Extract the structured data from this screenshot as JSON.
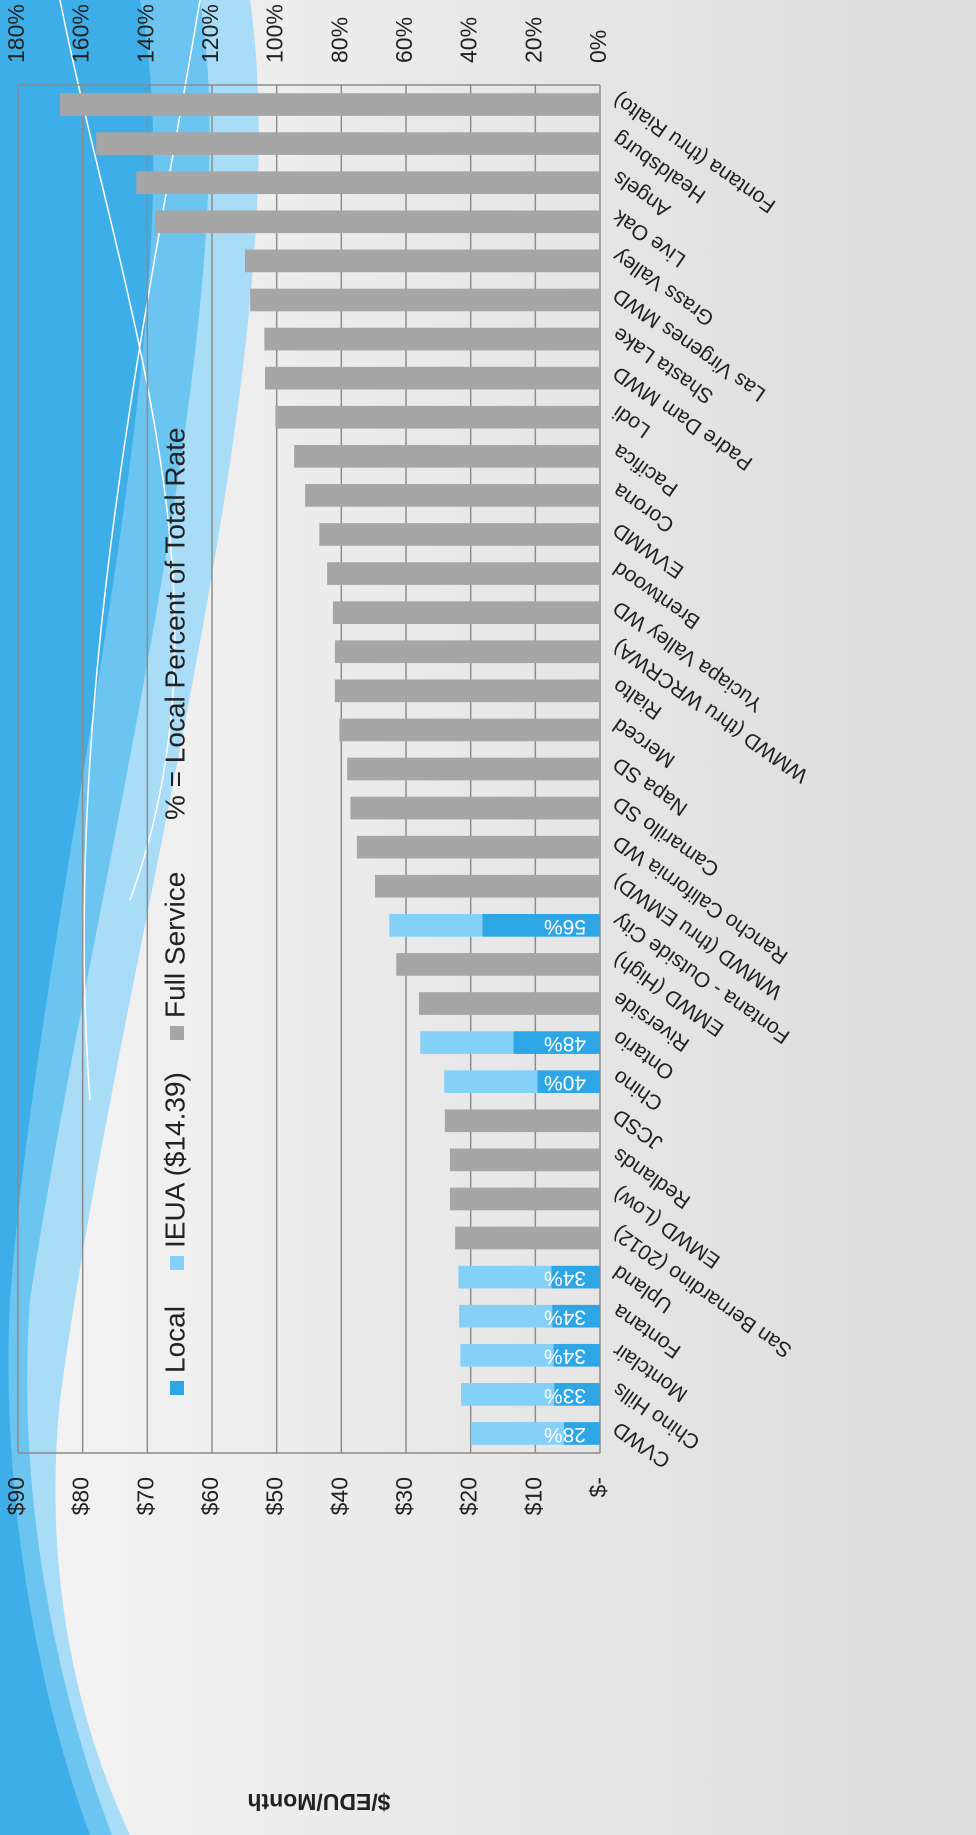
{
  "chart_data": {
    "type": "stacked_bar",
    "y_axis_label": "$/EDU/Month",
    "annotation": "% = Local Percent of Total Rate",
    "categories": [
      "CVWD",
      "Chino Hills",
      "Montclair",
      "Fontana",
      "Upland",
      "San Bernardino (2012)",
      "EMWD (Low)",
      "Redlands",
      "JCSD",
      "Chino",
      "Ontario",
      "Riverside",
      "EMWD (High)",
      "Fontana - Outside City",
      "WMWD (thru EMWD)",
      "Rancho California WD",
      "Camarillo SD",
      "Napa SD",
      "Merced",
      "Rialto",
      "WMWD (thru WRCRWA)",
      "Yuciapa Valley WD",
      "Brentwood",
      "EVWMD",
      "Corona",
      "Pacifica",
      "Lodi",
      "Padre Dam MWD",
      "Shasta Lake",
      "Las Virgenes MWD",
      "Grass Valley",
      "Live Oak",
      "Angels",
      "Healdsburg",
      "Fontana (thru Rialto)"
    ],
    "series": [
      {
        "name": "Local",
        "color": "#2ea6e6",
        "values": [
          5.6,
          7.1,
          7.2,
          7.4,
          7.5,
          null,
          null,
          null,
          null,
          9.7,
          13.4,
          null,
          null,
          18.2,
          null,
          null,
          null,
          null,
          null,
          null,
          null,
          null,
          null,
          null,
          null,
          null,
          null,
          null,
          null,
          null,
          null,
          null,
          null,
          null,
          null
        ]
      },
      {
        "name": "IEUA ($14.39)",
        "color": "#84d0f7",
        "values": [
          14.39,
          14.39,
          14.39,
          14.39,
          14.39,
          null,
          null,
          null,
          null,
          14.39,
          14.39,
          null,
          null,
          14.39,
          null,
          null,
          null,
          null,
          null,
          null,
          null,
          null,
          null,
          null,
          null,
          null,
          null,
          null,
          null,
          null,
          null,
          null,
          null,
          null,
          null
        ]
      },
      {
        "name": "Full Service",
        "color": "#a6a6a6",
        "values": [
          null,
          null,
          null,
          null,
          null,
          22.4,
          23.2,
          23.2,
          24.0,
          null,
          null,
          28.0,
          31.5,
          null,
          34.8,
          37.6,
          38.6,
          39.1,
          40.3,
          41.0,
          41.0,
          41.3,
          42.2,
          43.4,
          45.6,
          47.3,
          50.2,
          51.8,
          51.9,
          54.1,
          54.9,
          68.8,
          71.7,
          77.9,
          83.5
        ]
      }
    ],
    "local_percent_labels": [
      "28%",
      "33%",
      "34%",
      "34%",
      "34%",
      null,
      null,
      null,
      null,
      "40%",
      "48%",
      null,
      null,
      "56%",
      null,
      null,
      null,
      null,
      null,
      null,
      null,
      null,
      null,
      null,
      null,
      null,
      null,
      null,
      null,
      null,
      null,
      null,
      null,
      null,
      null
    ],
    "ylim": [
      0,
      90
    ],
    "yticks": [
      {
        "value": 0,
        "label": "$-"
      },
      {
        "value": 10,
        "label": "$10"
      },
      {
        "value": 20,
        "label": "$20"
      },
      {
        "value": 30,
        "label": "$30"
      },
      {
        "value": 40,
        "label": "$40"
      },
      {
        "value": 50,
        "label": "$50"
      },
      {
        "value": 60,
        "label": "$60"
      },
      {
        "value": 70,
        "label": "$70"
      },
      {
        "value": 80,
        "label": "$80"
      },
      {
        "value": 90,
        "label": "$90"
      }
    ],
    "y2lim": [
      0,
      180
    ],
    "y2ticks": [
      {
        "value": 0,
        "label": "0%"
      },
      {
        "value": 20,
        "label": "20%"
      },
      {
        "value": 40,
        "label": "40%"
      },
      {
        "value": 60,
        "label": "60%"
      },
      {
        "value": 80,
        "label": "80%"
      },
      {
        "value": 100,
        "label": "100%"
      },
      {
        "value": 120,
        "label": "120%"
      },
      {
        "value": 140,
        "label": "140%"
      },
      {
        "value": 160,
        "label": "160%"
      },
      {
        "value": 180,
        "label": "180%"
      }
    ],
    "grid": true,
    "legend": "top"
  }
}
